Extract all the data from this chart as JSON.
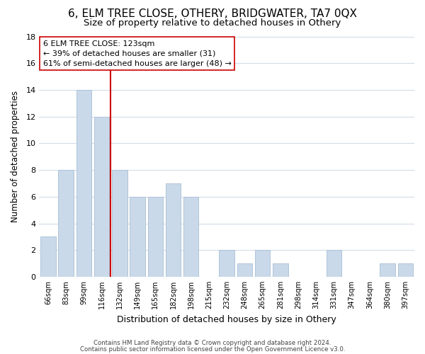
{
  "title": "6, ELM TREE CLOSE, OTHERY, BRIDGWATER, TA7 0QX",
  "subtitle": "Size of property relative to detached houses in Othery",
  "xlabel": "Distribution of detached houses by size in Othery",
  "ylabel": "Number of detached properties",
  "footnote1": "Contains HM Land Registry data © Crown copyright and database right 2024.",
  "footnote2": "Contains public sector information licensed under the Open Government Licence v3.0.",
  "categories": [
    "66sqm",
    "83sqm",
    "99sqm",
    "116sqm",
    "132sqm",
    "149sqm",
    "165sqm",
    "182sqm",
    "198sqm",
    "215sqm",
    "232sqm",
    "248sqm",
    "265sqm",
    "281sqm",
    "298sqm",
    "314sqm",
    "331sqm",
    "347sqm",
    "364sqm",
    "380sqm",
    "397sqm"
  ],
  "values": [
    3,
    8,
    14,
    12,
    8,
    6,
    6,
    7,
    6,
    0,
    2,
    1,
    2,
    1,
    0,
    0,
    2,
    0,
    0,
    1,
    1
  ],
  "bar_color": "#c9d9ea",
  "bar_edge_color": "#b0c4d8",
  "vline_color": "#cc0000",
  "annotation_text": "6 ELM TREE CLOSE: 123sqm\n← 39% of detached houses are smaller (31)\n61% of semi-detached houses are larger (48) →",
  "annotation_box_color": "#ffffff",
  "annotation_box_edge_color": "#cc0000",
  "ylim": [
    0,
    18
  ],
  "yticks": [
    0,
    2,
    4,
    6,
    8,
    10,
    12,
    14,
    16,
    18
  ],
  "bg_color": "#ffffff",
  "grid_color": "#d0dce8",
  "title_fontsize": 11,
  "subtitle_fontsize": 9.5
}
